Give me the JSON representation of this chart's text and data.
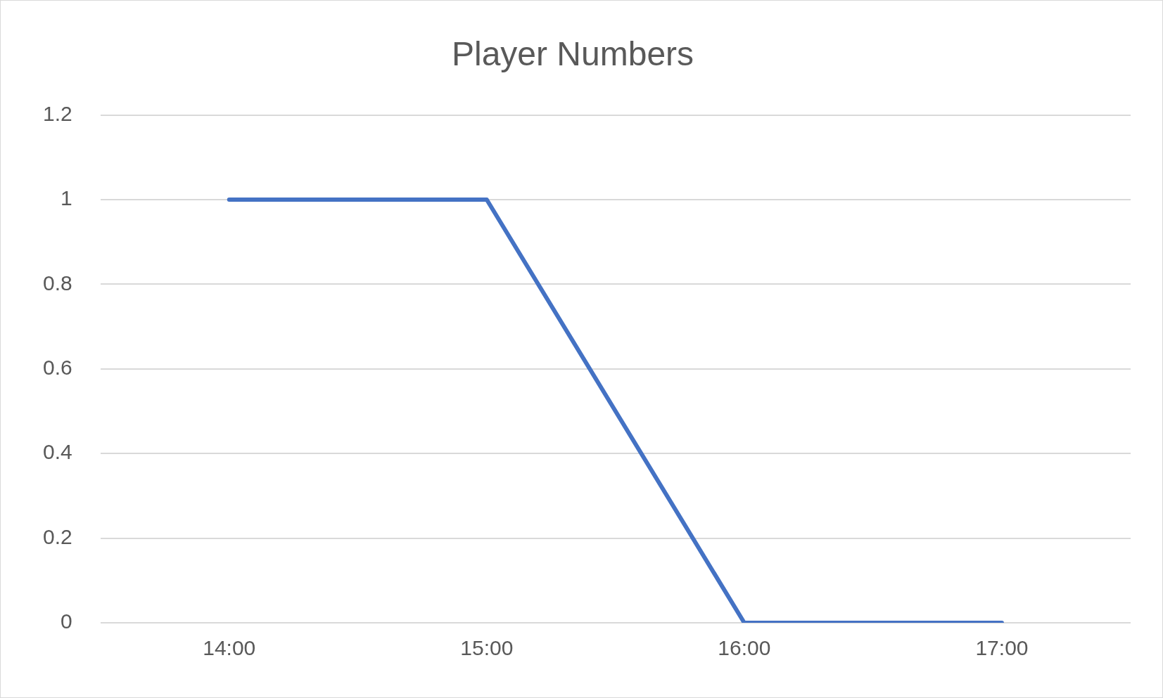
{
  "chart_data": {
    "type": "line",
    "title": "Player Numbers",
    "categories": [
      "14:00",
      "15:00",
      "16:00",
      "17:00"
    ],
    "series": [
      {
        "color": "#4472c4",
        "values": [
          1,
          1,
          0,
          0
        ]
      }
    ],
    "ylim": [
      0,
      1.2
    ],
    "yticks": [
      0,
      0.2,
      0.4,
      0.6,
      0.8,
      1,
      1.2
    ],
    "grid": "y",
    "legend": false,
    "marker": "none",
    "line_style": "solid"
  }
}
